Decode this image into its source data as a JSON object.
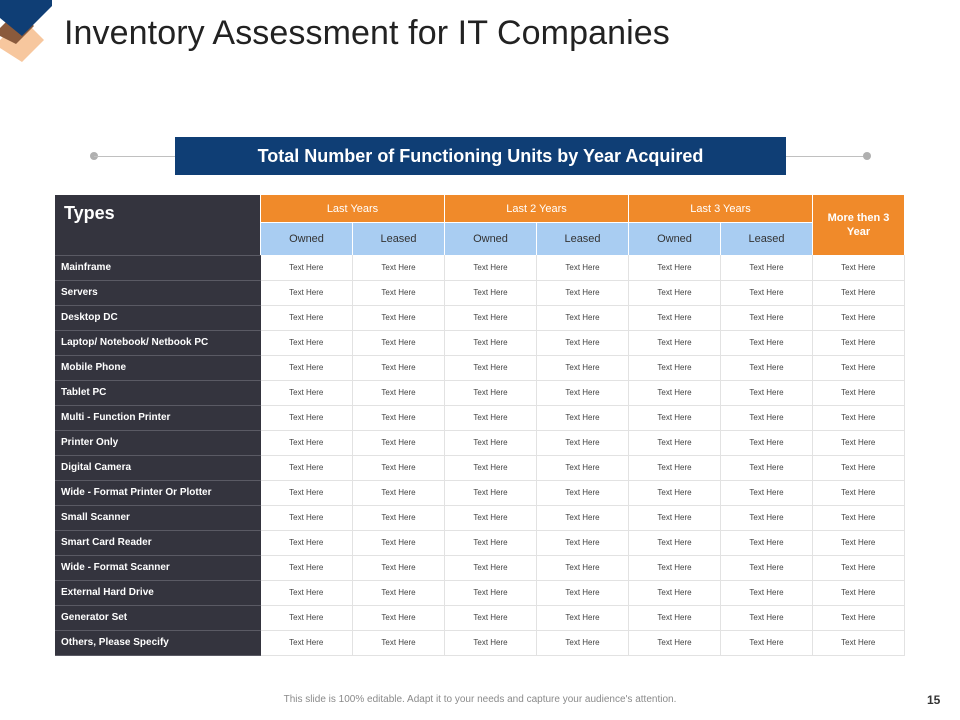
{
  "slide": {
    "title": "Inventory Assessment for IT Companies",
    "subtitle": "Total Number of Functioning Units by Year Acquired",
    "footer": "This slide is 100% editable.  Adapt it to your needs and capture your audience's attention.",
    "page_number": "15"
  },
  "colors": {
    "navy": "#0f3e75",
    "orange": "#f08a2a",
    "light_blue": "#a9cdf2",
    "dark_gray": "#34343e"
  },
  "table": {
    "types_label": "Types",
    "groups": [
      "Last Years",
      "Last 2 Years",
      "Last 3 Years"
    ],
    "more_label": "More then 3 Year",
    "subheaders": [
      "Owned",
      "Leased",
      "Owned",
      "Leased",
      "Owned",
      "Leased"
    ],
    "rows": [
      {
        "label": "Mainframe",
        "cells": [
          "Text Here",
          "Text Here",
          "Text Here",
          "Text Here",
          "Text Here",
          "Text Here",
          "Text Here"
        ]
      },
      {
        "label": "Servers",
        "cells": [
          "Text Here",
          "Text Here",
          "Text Here",
          "Text Here",
          "Text Here",
          "Text Here",
          "Text Here"
        ]
      },
      {
        "label": "Desktop DC",
        "cells": [
          "Text Here",
          "Text Here",
          "Text Here",
          "Text Here",
          "Text Here",
          "Text Here",
          "Text Here"
        ]
      },
      {
        "label": "Laptop/ Notebook/ Netbook PC",
        "cells": [
          "Text Here",
          "Text Here",
          "Text Here",
          "Text Here",
          "Text Here",
          "Text Here",
          "Text Here"
        ]
      },
      {
        "label": "Mobile Phone",
        "cells": [
          "Text Here",
          "Text Here",
          "Text Here",
          "Text Here",
          "Text Here",
          "Text Here",
          "Text Here"
        ]
      },
      {
        "label": "Tablet PC",
        "cells": [
          "Text Here",
          "Text Here",
          "Text Here",
          "Text Here",
          "Text Here",
          "Text Here",
          "Text Here"
        ]
      },
      {
        "label": "Multi - Function Printer",
        "cells": [
          "Text Here",
          "Text Here",
          "Text Here",
          "Text Here",
          "Text Here",
          "Text Here",
          "Text Here"
        ]
      },
      {
        "label": "Printer Only",
        "cells": [
          "Text Here",
          "Text Here",
          "Text Here",
          "Text Here",
          "Text Here",
          "Text Here",
          "Text Here"
        ]
      },
      {
        "label": "Digital Camera",
        "cells": [
          "Text Here",
          "Text Here",
          "Text Here",
          "Text Here",
          "Text Here",
          "Text Here",
          "Text Here"
        ]
      },
      {
        "label": "Wide - Format Printer Or Plotter",
        "cells": [
          "Text Here",
          "Text Here",
          "Text Here",
          "Text Here",
          "Text Here",
          "Text Here",
          "Text Here"
        ]
      },
      {
        "label": "Small Scanner",
        "cells": [
          "Text Here",
          "Text Here",
          "Text Here",
          "Text Here",
          "Text Here",
          "Text Here",
          "Text Here"
        ]
      },
      {
        "label": "Smart Card Reader",
        "cells": [
          "Text Here",
          "Text Here",
          "Text Here",
          "Text Here",
          "Text Here",
          "Text Here",
          "Text Here"
        ]
      },
      {
        "label": "Wide - Format Scanner",
        "cells": [
          "Text Here",
          "Text Here",
          "Text Here",
          "Text Here",
          "Text Here",
          "Text Here",
          "Text Here"
        ]
      },
      {
        "label": "External Hard Drive",
        "cells": [
          "Text Here",
          "Text Here",
          "Text Here",
          "Text Here",
          "Text Here",
          "Text Here",
          "Text Here"
        ]
      },
      {
        "label": "Generator Set",
        "cells": [
          "Text Here",
          "Text Here",
          "Text Here",
          "Text Here",
          "Text Here",
          "Text Here",
          "Text Here"
        ]
      },
      {
        "label": "Others, Please Specify",
        "cells": [
          "Text Here",
          "Text Here",
          "Text Here",
          "Text Here",
          "Text Here",
          "Text Here",
          "Text Here"
        ]
      }
    ]
  }
}
